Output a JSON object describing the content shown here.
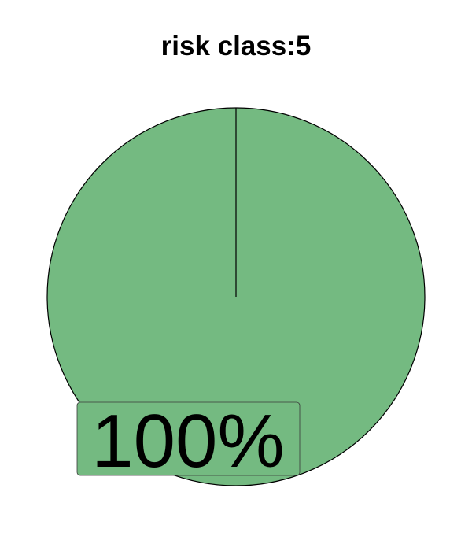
{
  "chart_data": {
    "type": "pie",
    "title": "risk class:5",
    "slices": [
      {
        "label": "100%",
        "value": 100,
        "color": "#74ba81"
      }
    ],
    "start_angle": "12 o'clock",
    "direction": "clockwise",
    "legend": "none"
  }
}
